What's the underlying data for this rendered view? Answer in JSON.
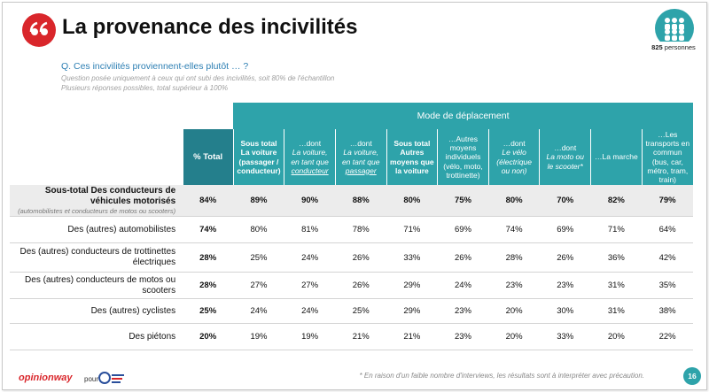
{
  "header": {
    "title": "La provenance des incivilités",
    "question": "Q. Ces incivilités proviennent-elles plutôt … ?",
    "notes": [
      "Question posée uniquement à ceux qui ont subi des incivilités, soit 80% de l'échantillon",
      "Plusieurs réponses possibles, total supérieur à 100%"
    ],
    "sample": {
      "count": "825",
      "unit": "personnes"
    }
  },
  "table": {
    "group_header": "Mode de déplacement",
    "columns": [
      [
        "% Total"
      ],
      [
        "Sous total La voiture (passager / conducteur)"
      ],
      [
        "…dont",
        "La voiture, en tant que",
        "conducteur"
      ],
      [
        "…dont",
        "La voiture, en tant que",
        "passager"
      ],
      [
        "Sous total Autres moyens que la voiture"
      ],
      [
        "…Autres moyens individuels (vélo, moto, trottinette)"
      ],
      [
        "…dont",
        "Le vélo (électrique ou non)"
      ],
      [
        "…dont",
        "La moto ou le scooter*"
      ],
      [
        "…La marche"
      ],
      [
        "…Les transports en commun (bus, car, métro, tram, train)"
      ]
    ],
    "rows": [
      {
        "label": "Sous-total Des conducteurs de véhicules motorisés",
        "note": "(automobilistes et conducteurs de motos ou scooters)",
        "values": [
          "84%",
          "89%",
          "90%",
          "88%",
          "80%",
          "75%",
          "80%",
          "70%",
          "82%",
          "79%"
        ]
      },
      {
        "label": "Des (autres) automobilistes",
        "values": [
          "74%",
          "80%",
          "81%",
          "78%",
          "71%",
          "69%",
          "74%",
          "69%",
          "71%",
          "64%"
        ]
      },
      {
        "label": "Des (autres) conducteurs de trottinettes électriques",
        "values": [
          "28%",
          "25%",
          "24%",
          "26%",
          "33%",
          "26%",
          "28%",
          "26%",
          "36%",
          "42%"
        ]
      },
      {
        "label": "Des (autres) conducteurs de motos ou scooters",
        "values": [
          "28%",
          "27%",
          "27%",
          "26%",
          "29%",
          "24%",
          "23%",
          "23%",
          "31%",
          "35%"
        ]
      },
      {
        "label": "Des (autres) cyclistes",
        "values": [
          "25%",
          "24%",
          "24%",
          "25%",
          "29%",
          "23%",
          "20%",
          "30%",
          "31%",
          "38%"
        ]
      },
      {
        "label": "Des piétons",
        "values": [
          "20%",
          "19%",
          "19%",
          "21%",
          "21%",
          "23%",
          "20%",
          "33%",
          "20%",
          "22%"
        ]
      }
    ]
  },
  "footer": {
    "brand": "opinionway",
    "for": "pour",
    "footnote": "* En raison d'un faible nombre d'interviews, les résultats sont à interpréter avec précaution.",
    "page": "16"
  }
}
